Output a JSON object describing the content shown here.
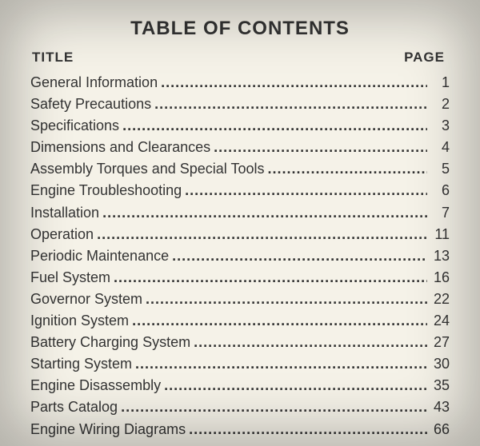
{
  "page": {
    "heading": "TABLE OF CONTENTS",
    "title_label": "TITLE",
    "page_label": "PAGE",
    "background_color": "#f5f2e8",
    "text_color": "#333333",
    "font_family": "Arial, Helvetica, sans-serif",
    "heading_fontsize": 24,
    "label_fontsize": 17,
    "entry_fontsize": 18
  },
  "toc": {
    "entries": [
      {
        "title": "General Information",
        "page": "1"
      },
      {
        "title": "Safety Precautions",
        "page": "2"
      },
      {
        "title": "Specifications",
        "page": "3"
      },
      {
        "title": "Dimensions and Clearances",
        "page": "4"
      },
      {
        "title": "Assembly Torques and Special Tools",
        "page": "5"
      },
      {
        "title": "Engine Troubleshooting",
        "page": "6"
      },
      {
        "title": "Installation",
        "page": "7"
      },
      {
        "title": "Operation",
        "page": "11"
      },
      {
        "title": "Periodic Maintenance",
        "page": "13"
      },
      {
        "title": "Fuel System",
        "page": "16"
      },
      {
        "title": "Governor System",
        "page": "22"
      },
      {
        "title": "Ignition System",
        "page": "24"
      },
      {
        "title": "Battery Charging System",
        "page": "27"
      },
      {
        "title": "Starting System",
        "page": "30"
      },
      {
        "title": "Engine Disassembly",
        "page": "35"
      },
      {
        "title": "Parts Catalog",
        "page": "43"
      },
      {
        "title": "Engine Wiring Diagrams",
        "page": "66"
      }
    ]
  }
}
